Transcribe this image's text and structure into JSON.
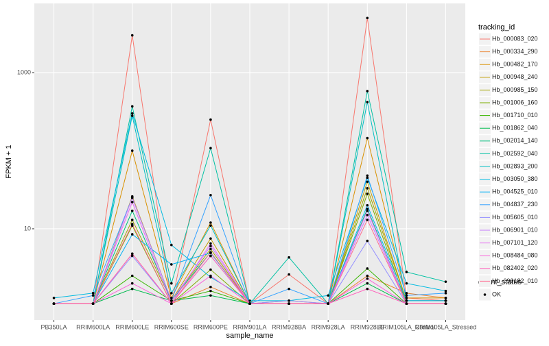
{
  "chart_data": {
    "type": "line",
    "x_label": "sample_name",
    "y_label": "FPKM + 1",
    "legend_title": "tracking_id",
    "point_legend_title": "quant_status",
    "point_legend_label": "OK",
    "point_color": "#000000",
    "log_y": true,
    "grid": true,
    "categories": [
      "PB350LA",
      "RRIM600LA",
      "RRIM600LE",
      "RRIM600SE",
      "RRIM600PE",
      "RRIM901LA",
      "RRIM928BA",
      "RRIM928LA",
      "RRIM928LE",
      "RRIM105LA_Control",
      "RRIM105LA_Stressed"
    ],
    "ylim": [
      0.68,
      7690
    ],
    "yticks": [
      10,
      1000
    ],
    "series": [
      {
        "name": "Hb_000083_020",
        "color": "#F8766D",
        "values": [
          1.1,
          1.1,
          3000,
          1.1,
          250,
          1.1,
          2.6,
          1.1,
          5000,
          1.3,
          1.2
        ]
      },
      {
        "name": "Hb_000334_290",
        "color": "#EA8331",
        "values": [
          1.1,
          1.1,
          4.8,
          1.1,
          1.8,
          1.1,
          1.2,
          1.1,
          2.5,
          1.5,
          1.3
        ]
      },
      {
        "name": "Hb_000482_170",
        "color": "#D89000",
        "values": [
          1.1,
          1.1,
          100,
          1.3,
          12,
          1.1,
          1.1,
          1.1,
          145,
          1.3,
          1.3
        ]
      },
      {
        "name": "Hb_000948_240",
        "color": "#C09B00",
        "values": [
          1.1,
          1.1,
          26,
          1.2,
          7.5,
          1.1,
          1.1,
          1.1,
          40,
          1.2,
          1.2
        ]
      },
      {
        "name": "Hb_000985_150",
        "color": "#A3A500",
        "values": [
          1.1,
          1.1,
          13,
          1.2,
          5.5,
          1.1,
          1.1,
          1.1,
          33,
          1.2,
          1.2
        ]
      },
      {
        "name": "Hb_001006_160",
        "color": "#7CAE00",
        "values": [
          1.1,
          1.1,
          11,
          1.1,
          3,
          1.1,
          1.1,
          1.1,
          28,
          1.1,
          1.1
        ]
      },
      {
        "name": "Hb_001710_010",
        "color": "#39B600",
        "values": [
          1.1,
          1.1,
          2.5,
          1.2,
          1.6,
          1.1,
          1.1,
          1.1,
          3.1,
          1.1,
          1.1
        ]
      },
      {
        "name": "Hb_001862_040",
        "color": "#00BB4E",
        "values": [
          1.1,
          1.1,
          1.7,
          1.2,
          1.4,
          1.1,
          1.1,
          1.1,
          2.0,
          1.1,
          1.1
        ]
      },
      {
        "name": "Hb_002014_140",
        "color": "#00BF7D",
        "values": [
          1.1,
          1.1,
          17,
          1.2,
          5,
          1.1,
          1.1,
          1.1,
          18,
          1.1,
          1.1
        ]
      },
      {
        "name": "Hb_002592_040",
        "color": "#00C1A3",
        "values": [
          1.1,
          1.1,
          370,
          2,
          108,
          1.1,
          4.3,
          1.1,
          580,
          2.8,
          2.1
        ]
      },
      {
        "name": "Hb_002893_200",
        "color": "#00BFC4",
        "values": [
          1.1,
          1.1,
          280,
          1.5,
          11,
          1.1,
          1.1,
          1.1,
          420,
          1.2,
          1.2
        ]
      },
      {
        "name": "Hb_003050_380",
        "color": "#00BAE0",
        "values": [
          1.3,
          1.5,
          300,
          6.2,
          2.4,
          1.2,
          1.2,
          1.4,
          45,
          2.0,
          1.6
        ]
      },
      {
        "name": "Hb_004525_010",
        "color": "#00B0F6",
        "values": [
          1.1,
          1.1,
          8.5,
          3.5,
          4.9,
          1.1,
          1.1,
          1.1,
          20,
          1.2,
          1.2
        ]
      },
      {
        "name": "Hb_004837_230",
        "color": "#35A2FF",
        "values": [
          1.1,
          1.4,
          25,
          1.2,
          27,
          1.1,
          1.7,
          1.1,
          48,
          1.4,
          1.5
        ]
      },
      {
        "name": "Hb_005605_010",
        "color": "#9590FF",
        "values": [
          1.1,
          1.1,
          4.5,
          1.1,
          4.5,
          1.1,
          1.2,
          1.1,
          7.0,
          1.1,
          1.1
        ]
      },
      {
        "name": "Hb_006901_010",
        "color": "#C77CFF",
        "values": [
          1.1,
          1.1,
          25,
          1.2,
          6,
          1.1,
          1.1,
          1.1,
          15,
          1.1,
          1.1
        ]
      },
      {
        "name": "Hb_007101_120",
        "color": "#E76BF3",
        "values": [
          1.1,
          1.1,
          22,
          1.1,
          6.5,
          1.1,
          1.1,
          1.1,
          17,
          1.1,
          1.1
        ]
      },
      {
        "name": "Hb_008484_080",
        "color": "#FA62DB",
        "values": [
          1.1,
          1.1,
          2.0,
          1.1,
          2.5,
          1.1,
          1.1,
          1.1,
          2.3,
          1.1,
          1.1
        ]
      },
      {
        "name": "Hb_082402_020",
        "color": "#FF62BC",
        "values": [
          1.1,
          1.1,
          4.8,
          1.1,
          4.5,
          1.1,
          1.1,
          1.1,
          1.7,
          1.1,
          1.1
        ]
      },
      {
        "name": "Hb_099182_010",
        "color": "#FF6C91",
        "values": [
          1.1,
          1.1,
          11.5,
          1.1,
          5,
          1.1,
          1.1,
          1.1,
          13,
          1.1,
          1.1
        ]
      }
    ]
  }
}
